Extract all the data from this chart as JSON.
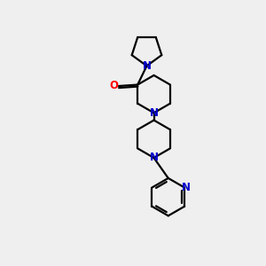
{
  "background_color": "#efefef",
  "bond_color": "#000000",
  "N_color": "#0000cd",
  "O_color": "#ff0000",
  "line_width": 1.6,
  "figsize": [
    3.0,
    3.0
  ],
  "dpi": 100,
  "xlim": [
    0,
    10
  ],
  "ylim": [
    0,
    10
  ]
}
